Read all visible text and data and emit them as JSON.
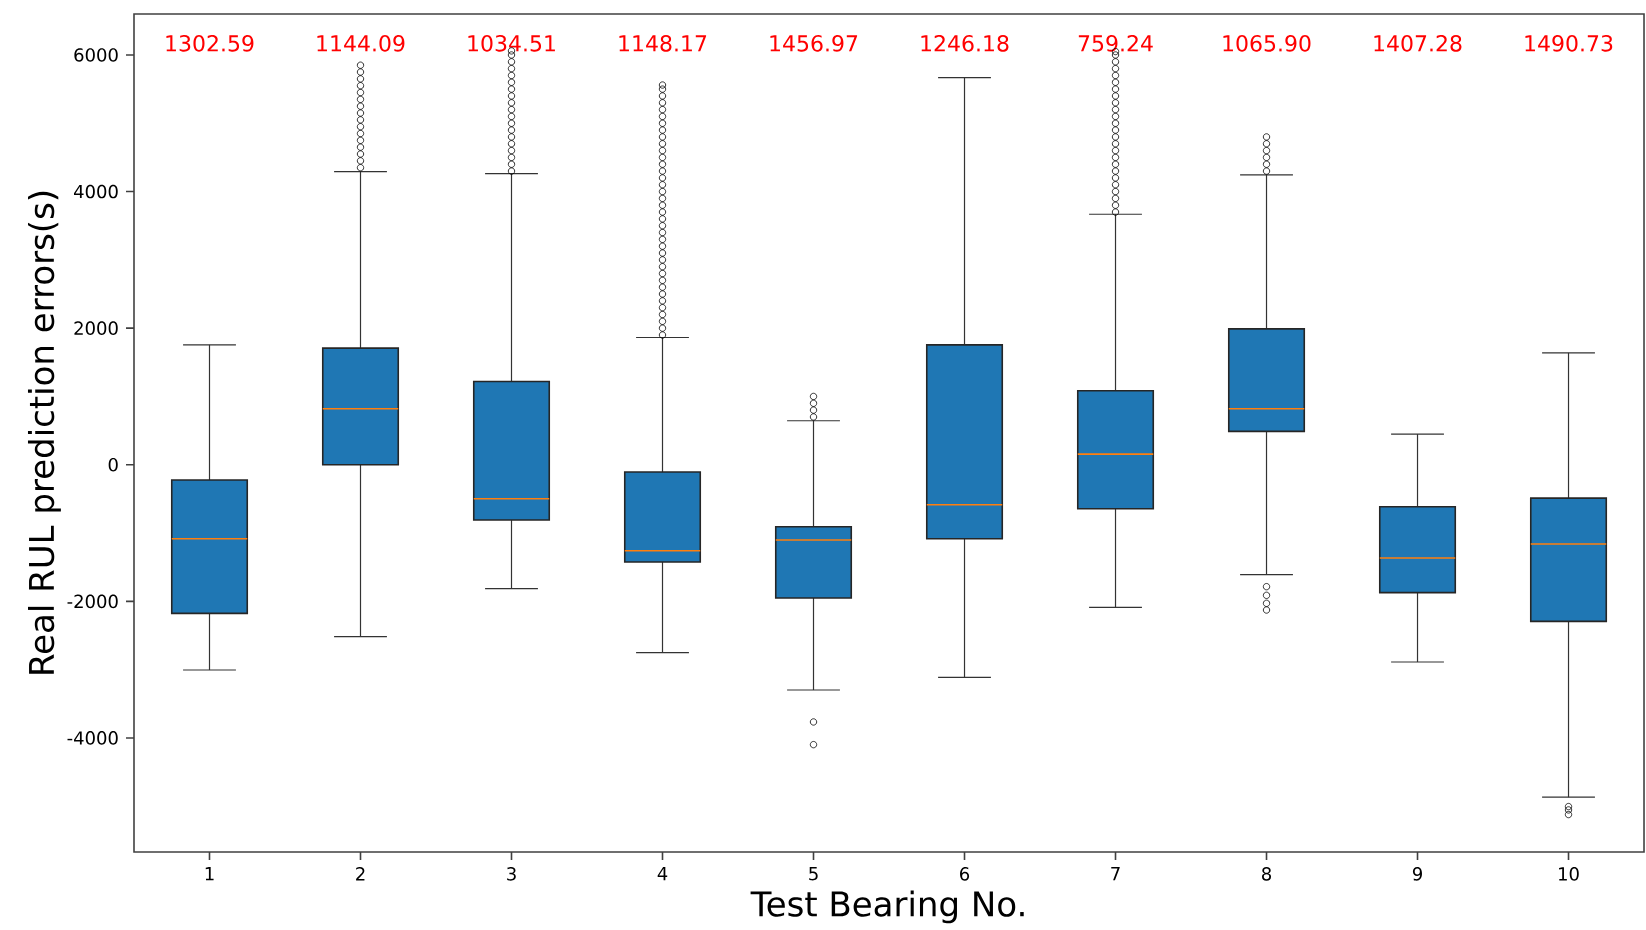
{
  "chart_data": {
    "type": "box",
    "xlabel": "Test Bearing No.",
    "ylabel": "Real RUL prediction errors(s)",
    "categories": [
      "1",
      "2",
      "3",
      "4",
      "5",
      "6",
      "7",
      "8",
      "9",
      "10"
    ],
    "color": "#1f77b4",
    "ylim": [
      -5670,
      6600
    ],
    "yticks": [
      -4000,
      -2000,
      0,
      2000,
      4000,
      6000
    ],
    "boxes": [
      {
        "low": -3005,
        "q1": -2176,
        "median": -1083,
        "q3": -224,
        "high": 1756
      },
      {
        "low": -2517,
        "q1": 0,
        "median": 820,
        "q3": 1707,
        "high": 4293,
        "outliers": [
          4350,
          4450,
          4550,
          4650,
          4750,
          4850,
          4950,
          5050,
          5150,
          5250,
          5350,
          5450,
          5550,
          5650,
          5750,
          5850
        ]
      },
      {
        "low": -1815,
        "q1": -810,
        "median": -498,
        "q3": 1220,
        "high": 4263,
        "outliers": [
          4300,
          4400,
          4500,
          4600,
          4700,
          4800,
          4900,
          5000,
          5100,
          5200,
          5300,
          5400,
          5500,
          5600,
          5700,
          5800,
          5900,
          6000,
          6060
        ]
      },
      {
        "low": -2751,
        "q1": -1424,
        "median": -1259,
        "q3": -107,
        "high": 1863,
        "outliers": [
          1900,
          2000,
          2100,
          2200,
          2300,
          2400,
          2500,
          2600,
          2700,
          2800,
          2900,
          3000,
          3100,
          3200,
          3300,
          3400,
          3500,
          3600,
          3700,
          3800,
          3900,
          4000,
          4100,
          4200,
          4300,
          4400,
          4500,
          4600,
          4700,
          4800,
          4900,
          5000,
          5100,
          5200,
          5300,
          5400,
          5500,
          5560
        ]
      },
      {
        "low": -3298,
        "q1": -1951,
        "median": -1102,
        "q3": -907,
        "high": 644,
        "outliers": [
          700,
          800,
          900,
          1000,
          -3766,
          -4098
        ]
      },
      {
        "low": -3112,
        "q1": -1083,
        "median": -585,
        "q3": 1756,
        "high": 5668
      },
      {
        "low": -2088,
        "q1": -644,
        "median": 156,
        "q3": 1083,
        "high": 3668,
        "outliers": [
          3700,
          3800,
          3900,
          4000,
          4100,
          4200,
          4300,
          4400,
          4500,
          4600,
          4700,
          4800,
          4900,
          5000,
          5100,
          5200,
          5300,
          5400,
          5500,
          5600,
          5700,
          5800,
          5900,
          6000,
          6050
        ]
      },
      {
        "low": -1610,
        "q1": 488,
        "median": 820,
        "q3": 1990,
        "high": 4244,
        "outliers": [
          4300,
          4400,
          4500,
          4600,
          4700,
          4800,
          -1785,
          -1912,
          -2029,
          -2127
        ]
      },
      {
        "low": -2888,
        "q1": -1873,
        "median": -1366,
        "q3": -615,
        "high": 449
      },
      {
        "low": -4868,
        "q1": -2293,
        "median": -1161,
        "q3": -488,
        "high": 1639,
        "outliers": [
          -5005,
          -5054,
          -5122
        ]
      }
    ],
    "annotations": [
      "1302.59",
      "1144.09",
      "1034.51",
      "1148.17",
      "1456.97",
      "1246.18",
      "759.24",
      "1065.90",
      "1407.28",
      "1490.73"
    ],
    "marker": "circle"
  }
}
